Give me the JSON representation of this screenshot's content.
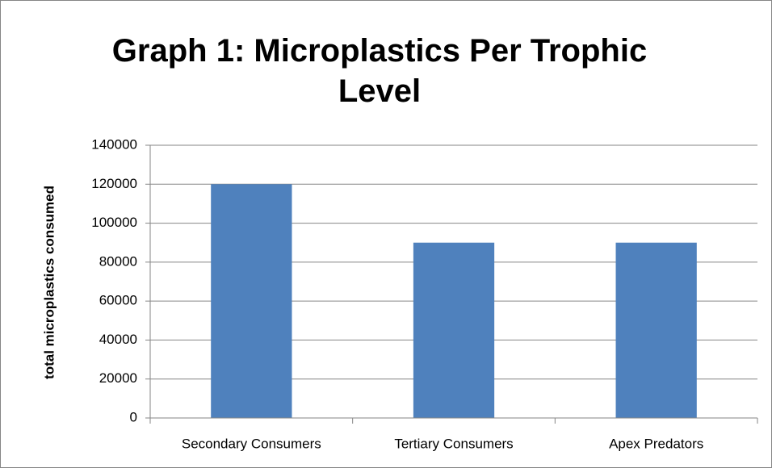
{
  "chart_data": {
    "type": "bar",
    "title": "Graph 1: Microplastics Per Trophic Level",
    "y_label": "total microplastics consumed",
    "categories": [
      "Secondary Consumers",
      "Tertiary Consumers",
      "Apex Predators"
    ],
    "values": [
      120000,
      90000,
      90000
    ],
    "color": "#4f81bd",
    "ylim": [
      0,
      140000
    ],
    "yticks": [
      0,
      20000,
      40000,
      60000,
      80000,
      100000,
      120000,
      140000
    ],
    "grid": true
  }
}
